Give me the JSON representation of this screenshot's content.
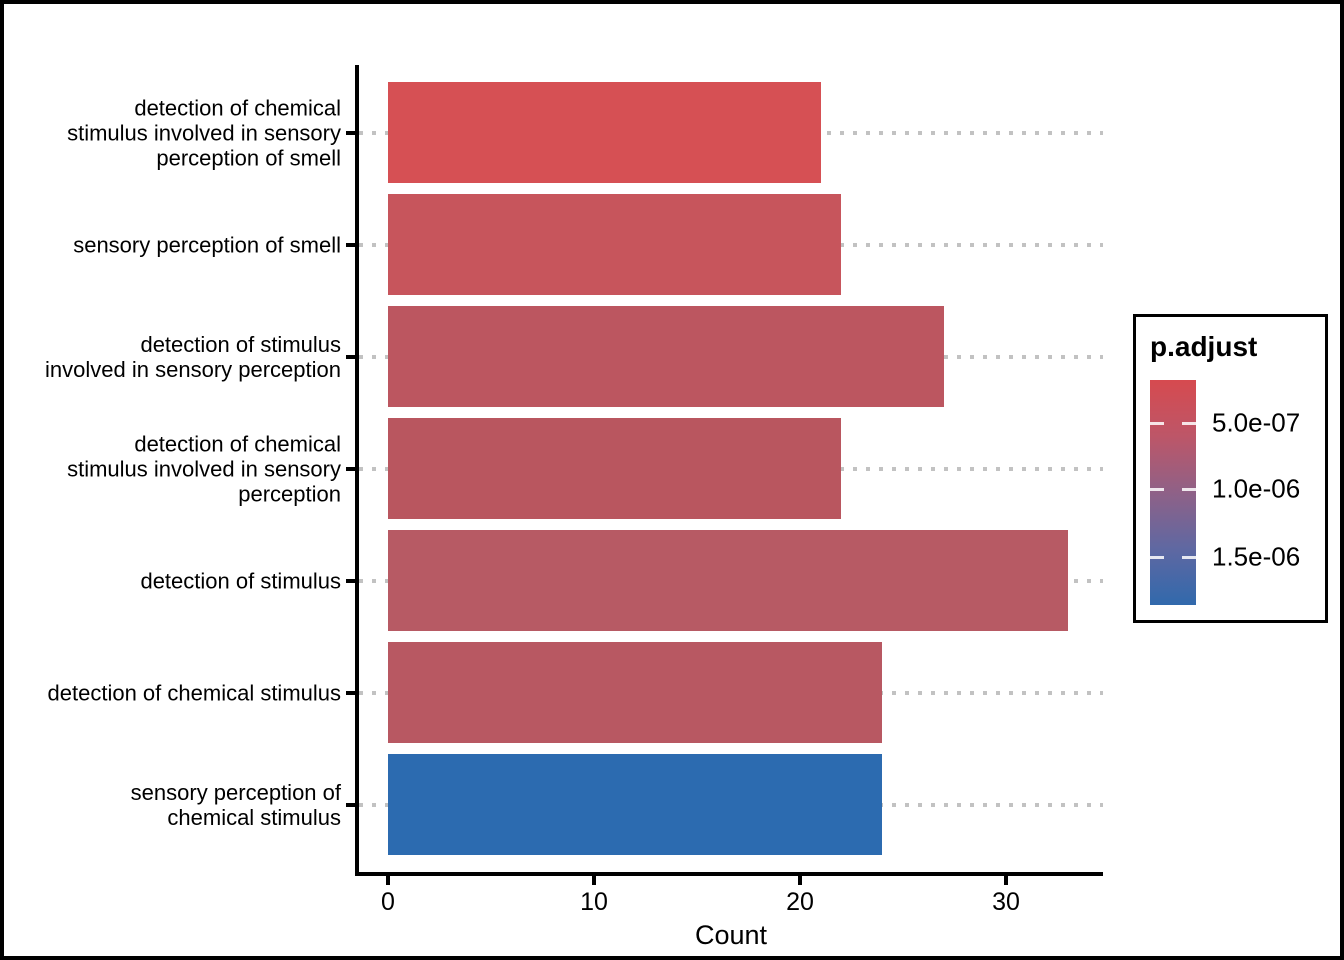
{
  "figure": {
    "background": "#ffffff",
    "border_color": "#000000"
  },
  "chart_data": {
    "type": "bar",
    "orientation": "horizontal",
    "title": "",
    "xlabel": "Count",
    "ylabel": "",
    "xlim": [
      0,
      33
    ],
    "x_ticks": [
      "0",
      "10",
      "20",
      "30"
    ],
    "x_tick_values": [
      0,
      10,
      20,
      30
    ],
    "grid": {
      "style": "dotted",
      "color": "#c2c2c2",
      "orientation": "horizontal"
    },
    "categories": [
      "detection of chemical\nstimulus involved in sensory\nperception of smell",
      "sensory perception of smell",
      "detection of stimulus\ninvolved in sensory perception",
      "detection of chemical\nstimulus involved in sensory\nperception",
      "detection of stimulus",
      "detection of chemical stimulus",
      "sensory perception of\nchemical stimulus"
    ],
    "values": [
      21,
      22,
      27,
      22,
      33,
      24,
      24
    ],
    "bar_colors": [
      "#d65054",
      "#c7555c",
      "#bc5660",
      "#b9565f",
      "#b75a64",
      "#b85862",
      "#2c6bb0"
    ],
    "legend": {
      "title": "p.adjust",
      "position": "right",
      "tick_labels": [
        "5.0e-07",
        "1.0e-06",
        "1.5e-06"
      ],
      "gradient_stops": [
        "#d64a4f",
        "#bd5668",
        "#8f6187",
        "#5f68a2",
        "#3169ac"
      ]
    }
  }
}
